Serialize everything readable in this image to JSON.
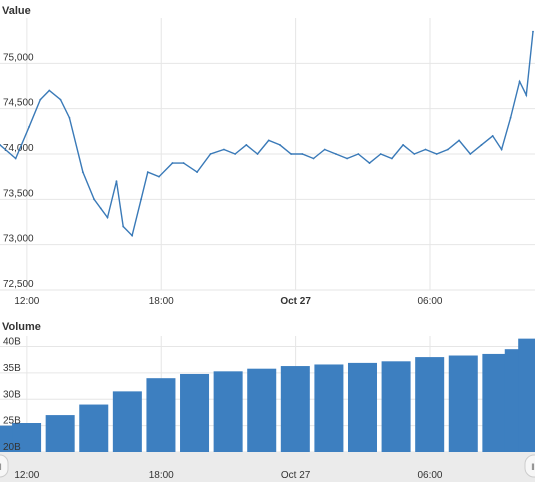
{
  "colors": {
    "line": "#3a7ab8",
    "bar": "#3d7fc0",
    "grid": "#e6e6e6",
    "axis_text": "#333333",
    "navigator_bg": "#ebebeb",
    "navigator_handle": "#f7f7f7"
  },
  "chart_data": [
    {
      "type": "line",
      "title": "Value",
      "ylabel": "Value",
      "ylim": [
        72500,
        75500
      ],
      "y_ticks": [
        "72,500",
        "73,000",
        "73,500",
        "74,000",
        "74,500",
        "75,000"
      ],
      "y_tick_values": [
        72500,
        73000,
        73500,
        74000,
        74500,
        75000
      ],
      "x_ticks": [
        "12:00",
        "18:00",
        "Oct 27",
        "06:00"
      ],
      "x_tick_hours": [
        0,
        6,
        12,
        18
      ],
      "xlim_hours": [
        -1.2,
        22.6
      ],
      "grid": true,
      "series": [
        {
          "x_hours": [
            -1.2,
            -0.5,
            0.1,
            0.6,
            1.0,
            1.5,
            1.9,
            2.5,
            3.0,
            3.3,
            3.6,
            4.0,
            4.3,
            4.7,
            5.1,
            5.4,
            5.9,
            6.5,
            7.0,
            7.6,
            8.2,
            8.8,
            9.3,
            9.8,
            10.3,
            10.8,
            11.3,
            11.8,
            12.3,
            12.8,
            13.3,
            13.8,
            14.3,
            14.8,
            15.3,
            15.8,
            16.3,
            16.8,
            17.3,
            17.8,
            18.3,
            18.8,
            19.3,
            19.8,
            20.3,
            20.8,
            21.2,
            21.6,
            22.0,
            22.3,
            22.6
          ],
          "values": [
            74100,
            73950,
            74300,
            74600,
            74700,
            74600,
            74400,
            73800,
            73500,
            73400,
            73300,
            73700,
            73200,
            73100,
            73500,
            73800,
            73750,
            73900,
            73900,
            73800,
            74000,
            74050,
            74000,
            74100,
            74000,
            74150,
            74100,
            74000,
            74000,
            73950,
            74050,
            74000,
            73950,
            74000,
            73900,
            74000,
            73950,
            74100,
            74000,
            74050,
            74000,
            74050,
            74150,
            74000,
            74100,
            74200,
            74050,
            74400,
            74800,
            74650,
            75350
          ]
        }
      ]
    },
    {
      "type": "bar",
      "title": "Volume",
      "ylabel": "Volume",
      "ylim": [
        20,
        42
      ],
      "y_ticks": [
        "20B",
        "25B",
        "30B",
        "35B",
        "40B"
      ],
      "y_tick_values": [
        20,
        25,
        30,
        35,
        40
      ],
      "x_ticks": [
        "12:00",
        "18:00",
        "Oct 27",
        "06:00"
      ],
      "x_tick_hours": [
        0,
        6,
        12,
        18
      ],
      "xlim_hours": [
        -1.2,
        22.6
      ],
      "grid": true,
      "series": [
        {
          "x_hours": [
            -1.2,
            0.0,
            1.5,
            3.0,
            4.5,
            6.0,
            7.5,
            9.0,
            10.5,
            12.0,
            13.5,
            15.0,
            16.5,
            18.0,
            19.5,
            21.0,
            22.0,
            22.6
          ],
          "values": [
            25.0,
            25.5,
            27.0,
            29.0,
            31.5,
            34.0,
            34.8,
            35.3,
            35.8,
            36.3,
            36.6,
            36.9,
            37.2,
            38.0,
            38.3,
            38.6,
            39.5,
            41.5
          ]
        }
      ]
    }
  ],
  "navigator": {
    "x_ticks": [
      "12:00",
      "18:00",
      "Oct 27",
      "06:00"
    ]
  }
}
